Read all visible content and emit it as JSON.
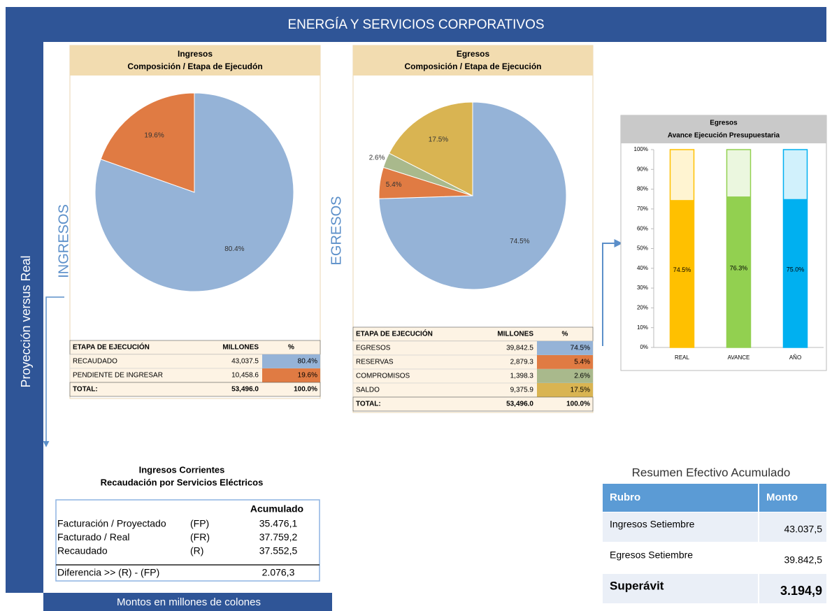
{
  "header": {
    "title": "ENERGÍA Y SERVICIOS CORPORATIVOS"
  },
  "side_label": "Proyección versus Real",
  "footer": "Montos en millones de colones",
  "chart_data": [
    {
      "type": "pie",
      "title": "Ingresos",
      "subtitle": "Composición / Etapa de Ejecudón",
      "side_label": "INGRESOS",
      "categories": [
        "RECAUDADO",
        "PENDIENTE DE INGRESAR"
      ],
      "values": [
        80.4,
        19.6
      ],
      "value_labels": [
        "80.4%",
        "19.6%"
      ],
      "colors": [
        "#95b3d7",
        "#e07b43"
      ],
      "table": {
        "columns": [
          "ETAPA DE EJECUCIÓN",
          "MILLONES",
          "%"
        ],
        "millones": [
          "43,037.5",
          "10,458.6"
        ],
        "percent": [
          "80.4%",
          "19.6%"
        ],
        "total": [
          "TOTAL:",
          "53,496.0",
          "100.0%"
        ]
      }
    },
    {
      "type": "pie",
      "title": "Egresos",
      "subtitle": "Composición / Etapa de Ejecución",
      "side_label": "EGRESOS",
      "categories": [
        "EGRESOS",
        "RESERVAS",
        "COMPROMISOS",
        "SALDO"
      ],
      "values": [
        74.5,
        5.4,
        2.6,
        17.5
      ],
      "value_labels": [
        "74.5%",
        "5.4%",
        "2.6%",
        "17.5%"
      ],
      "colors": [
        "#95b3d7",
        "#e07b43",
        "#a9b98c",
        "#d9b452"
      ],
      "table": {
        "columns": [
          "ETAPA DE EJECUCIÓN",
          "MILLONES",
          "%"
        ],
        "millones": [
          "39,842.5",
          "2,879.3",
          "1,398.3",
          "9,375.9"
        ],
        "percent": [
          "74.5%",
          "5.4%",
          "2.6%",
          "17.5%"
        ],
        "total": [
          "TOTAL:",
          "53,496.0",
          "100.0%"
        ]
      }
    },
    {
      "type": "bar",
      "title": "Egresos",
      "subtitle": "Avance Ejecución Presupuestaria",
      "categories": [
        "REAL",
        "AVANCE",
        "AÑO"
      ],
      "values": [
        74.5,
        76.3,
        75.0
      ],
      "value_labels": [
        "74.5%",
        "76.3%",
        "75.0%"
      ],
      "colors": [
        "#ffc000",
        "#92d050",
        "#00b0f0"
      ],
      "ylim": [
        0,
        100
      ],
      "yticks": [
        {
          "value": 0,
          "label": "0%"
        },
        {
          "value": 10,
          "label": "10%"
        },
        {
          "value": 20,
          "label": "20%"
        },
        {
          "value": 30,
          "label": "30%"
        },
        {
          "value": 40,
          "label": "40%"
        },
        {
          "value": 50,
          "label": "50%"
        },
        {
          "value": 60,
          "label": "60%"
        },
        {
          "value": 70,
          "label": "70%"
        },
        {
          "value": 80,
          "label": "80%"
        },
        {
          "value": 90,
          "label": "90%"
        },
        {
          "value": 100,
          "label": "100%"
        }
      ],
      "grid": false
    }
  ],
  "ingresos_corrientes": {
    "title": [
      "Ingresos Corrientes",
      "Recaudación por Servicios Eléctricos"
    ],
    "column": "Acumulado",
    "rows": [
      [
        "Facturación / Proyectado",
        "(FP)",
        "35.476,1"
      ],
      [
        "Facturado / Real",
        "(FR)",
        "37.759,2"
      ],
      [
        "Recaudado",
        "(R)",
        "37.552,5"
      ]
    ],
    "difference": [
      "Diferencia  >> (R) - (FP)",
      "2.076,3"
    ]
  },
  "resumen": {
    "title": "Resumen Efectivo Acumulado",
    "columns": [
      "Rubro",
      "Monto"
    ],
    "rows": [
      [
        "Ingresos Setiembre",
        "43.037,5"
      ],
      [
        "Egresos Setiembre",
        "39.842,5"
      ],
      [
        "Superávit",
        "3.194,9"
      ]
    ]
  }
}
